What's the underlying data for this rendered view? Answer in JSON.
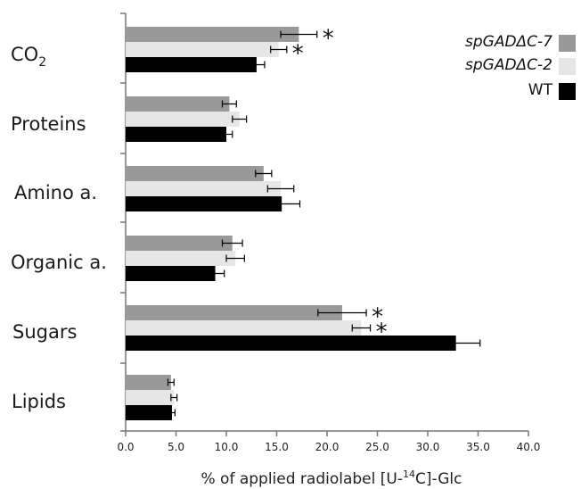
{
  "chart_data": {
    "type": "bar",
    "orientation": "horizontal",
    "categories": [
      "CO2",
      "Proteins",
      "Amino a.",
      "Organic a.",
      "Sugars",
      "Lipids"
    ],
    "category_display": [
      {
        "main": "CO",
        "sub": "2"
      },
      {
        "main": "Proteins",
        "sub": ""
      },
      {
        "main": "Amino a.",
        "sub": ""
      },
      {
        "main": "Organic a.",
        "sub": ""
      },
      {
        "main": "Sugars",
        "sub": ""
      },
      {
        "main": "Lipids",
        "sub": ""
      }
    ],
    "series": [
      {
        "name": "spGADΔC-7",
        "color": "#999999",
        "values": [
          17.2,
          10.3,
          13.7,
          10.6,
          21.5,
          4.5
        ],
        "errors": [
          1.8,
          0.7,
          0.8,
          1.0,
          2.4,
          0.3
        ]
      },
      {
        "name": "spGADΔC-2",
        "color": "#e6e6e6",
        "values": [
          15.2,
          11.3,
          15.4,
          10.9,
          23.4,
          4.8
        ],
        "errors": [
          0.8,
          0.7,
          1.3,
          0.9,
          0.9,
          0.3
        ]
      },
      {
        "name": "WT",
        "color": "#000000",
        "values": [
          13.0,
          10.0,
          15.5,
          8.9,
          32.8,
          4.6
        ],
        "errors": [
          0.8,
          0.6,
          1.8,
          0.9,
          2.4,
          0.3
        ]
      }
    ],
    "significance_marks": [
      {
        "category": "CO2",
        "series": "spGADΔC-7",
        "symbol": "*"
      },
      {
        "category": "CO2",
        "series": "spGADΔC-2",
        "symbol": "*"
      },
      {
        "category": "Sugars",
        "series": "spGADΔC-7",
        "symbol": "*"
      },
      {
        "category": "Sugars",
        "series": "spGADΔC-2",
        "symbol": "*"
      }
    ],
    "xlabel": {
      "prefix": "% of applied radiolabel [U-",
      "sup": "14",
      "suffix": "C]-Glc"
    },
    "xlim": [
      0,
      40
    ],
    "xticks": [
      "0.0",
      "5.0",
      "10.0",
      "15.0",
      "20.0",
      "25.0",
      "30.0",
      "35.0",
      "40.0"
    ],
    "grid": false,
    "legend_position": "top-right"
  }
}
